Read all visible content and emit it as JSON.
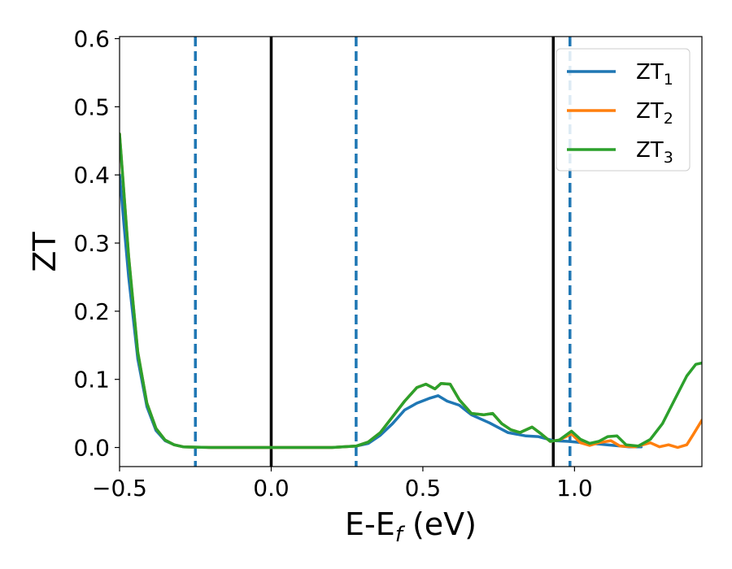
{
  "chart_data": {
    "type": "line",
    "xlabel": "E-E",
    "xlabel_sub": "f",
    "xlabel_unit": " (eV)",
    "ylabel": "ZT",
    "xlim": [
      -0.5,
      1.42
    ],
    "ylim": [
      -0.028,
      0.603
    ],
    "xticks": [
      -0.5,
      0.0,
      0.5,
      1.0
    ],
    "xtick_labels": [
      "−0.5",
      "0.0",
      "0.5",
      "1.0"
    ],
    "yticks": [
      0.0,
      0.1,
      0.2,
      0.3,
      0.4,
      0.5,
      0.6
    ],
    "ytick_labels": [
      "0.0",
      "0.1",
      "0.2",
      "0.3",
      "0.4",
      "0.5",
      "0.6"
    ],
    "grid": false,
    "legend_position": "top-right",
    "vlines": [
      {
        "x": -0.25,
        "style": "dashed",
        "color": "#1f77b4"
      },
      {
        "x": 0.0,
        "style": "solid",
        "color": "#000000"
      },
      {
        "x": 0.28,
        "style": "dashed",
        "color": "#1f77b4"
      },
      {
        "x": 0.93,
        "style": "solid",
        "color": "#000000"
      },
      {
        "x": 0.985,
        "style": "dashed",
        "color": "#1f77b4"
      }
    ],
    "series": [
      {
        "name": "ZT",
        "sub": "1",
        "color": "#1f77b4",
        "x": [
          -0.5,
          -0.47,
          -0.44,
          -0.41,
          -0.38,
          -0.35,
          -0.32,
          -0.29,
          -0.25,
          -0.2,
          0.0,
          0.2,
          0.28,
          0.32,
          0.36,
          0.4,
          0.44,
          0.48,
          0.52,
          0.55,
          0.58,
          0.62,
          0.66,
          0.72,
          0.78,
          0.84,
          0.88,
          0.93,
          0.98,
          1.03,
          1.08,
          1.13,
          1.18,
          1.22
        ],
        "y": [
          0.4,
          0.25,
          0.13,
          0.06,
          0.025,
          0.01,
          0.004,
          0.001,
          0.0005,
          0.0,
          0.0,
          0.0,
          0.002,
          0.006,
          0.018,
          0.035,
          0.055,
          0.065,
          0.072,
          0.076,
          0.068,
          0.062,
          0.048,
          0.036,
          0.022,
          0.017,
          0.016,
          0.01,
          0.009,
          0.007,
          0.005,
          0.003,
          0.001,
          0.001
        ]
      },
      {
        "name": "ZT",
        "sub": "2",
        "color": "#ff7f0e",
        "x": [
          -0.5,
          -0.47,
          -0.44,
          -0.41,
          -0.38,
          -0.35,
          -0.32,
          -0.29,
          -0.25,
          -0.2,
          0.0,
          0.2,
          0.28,
          0.32,
          0.36,
          0.4,
          0.44,
          0.48,
          0.51,
          0.54,
          0.56,
          0.59,
          0.62,
          0.66,
          0.7,
          0.73,
          0.76,
          0.79,
          0.82,
          0.86,
          0.89,
          0.92,
          0.95,
          0.99,
          1.02,
          1.05,
          1.08,
          1.12,
          1.15,
          1.2,
          1.25,
          1.28,
          1.31,
          1.34,
          1.37,
          1.39,
          1.42
        ],
        "y": [
          0.46,
          0.28,
          0.14,
          0.065,
          0.028,
          0.011,
          0.004,
          0.001,
          0.0005,
          0.0,
          0.0,
          0.0,
          0.002,
          0.008,
          0.022,
          0.045,
          0.068,
          0.088,
          0.093,
          0.086,
          0.094,
          0.093,
          0.07,
          0.05,
          0.048,
          0.05,
          0.035,
          0.026,
          0.022,
          0.03,
          0.02,
          0.009,
          0.011,
          0.02,
          0.007,
          0.003,
          0.007,
          0.01,
          0.002,
          0.001,
          0.007,
          0.001,
          0.004,
          0.0,
          0.004,
          0.018,
          0.04
        ]
      },
      {
        "name": "ZT",
        "sub": "3",
        "color": "#2ca02c",
        "x": [
          -0.5,
          -0.47,
          -0.44,
          -0.41,
          -0.38,
          -0.35,
          -0.32,
          -0.29,
          -0.25,
          -0.2,
          0.0,
          0.2,
          0.28,
          0.32,
          0.36,
          0.4,
          0.44,
          0.48,
          0.51,
          0.54,
          0.56,
          0.59,
          0.62,
          0.66,
          0.7,
          0.73,
          0.76,
          0.79,
          0.82,
          0.86,
          0.89,
          0.92,
          0.95,
          0.99,
          1.02,
          1.05,
          1.08,
          1.11,
          1.14,
          1.17,
          1.21,
          1.25,
          1.29,
          1.33,
          1.37,
          1.4,
          1.42
        ],
        "y": [
          0.46,
          0.28,
          0.14,
          0.065,
          0.028,
          0.011,
          0.004,
          0.001,
          0.0005,
          0.0,
          0.0,
          0.0,
          0.002,
          0.008,
          0.022,
          0.045,
          0.068,
          0.088,
          0.093,
          0.086,
          0.094,
          0.093,
          0.07,
          0.05,
          0.048,
          0.05,
          0.035,
          0.026,
          0.022,
          0.03,
          0.02,
          0.009,
          0.011,
          0.024,
          0.012,
          0.006,
          0.009,
          0.016,
          0.017,
          0.004,
          0.002,
          0.012,
          0.035,
          0.07,
          0.105,
          0.122,
          0.124
        ]
      }
    ]
  }
}
